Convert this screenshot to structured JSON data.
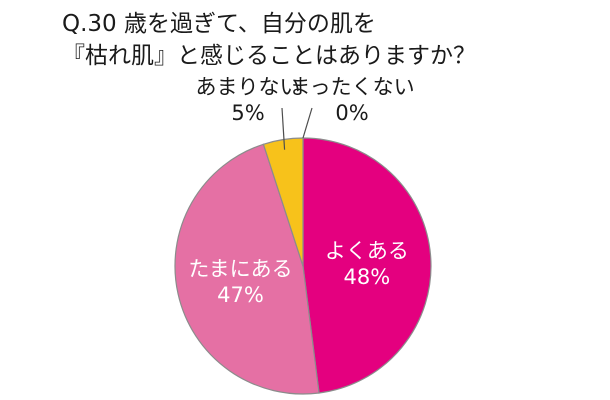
{
  "chart_data": {
    "type": "pie",
    "title": "Q.30 歳を過ぎて、自分の肌を",
    "subtitle": "『枯れ肌』と感じることはありますか？",
    "slices": [
      {
        "label": "よくある",
        "value": 48,
        "value_text": "48%",
        "color": "#e4007f"
      },
      {
        "label": "たまにある",
        "value": 47,
        "value_text": "47%",
        "color": "#e570a4"
      },
      {
        "label": "あまりない",
        "value": 5,
        "value_text": "5%",
        "color": "#f7c21b"
      },
      {
        "label": "まったくない",
        "value": 0,
        "value_text": "0%",
        "color": "#ffffff"
      }
    ]
  }
}
